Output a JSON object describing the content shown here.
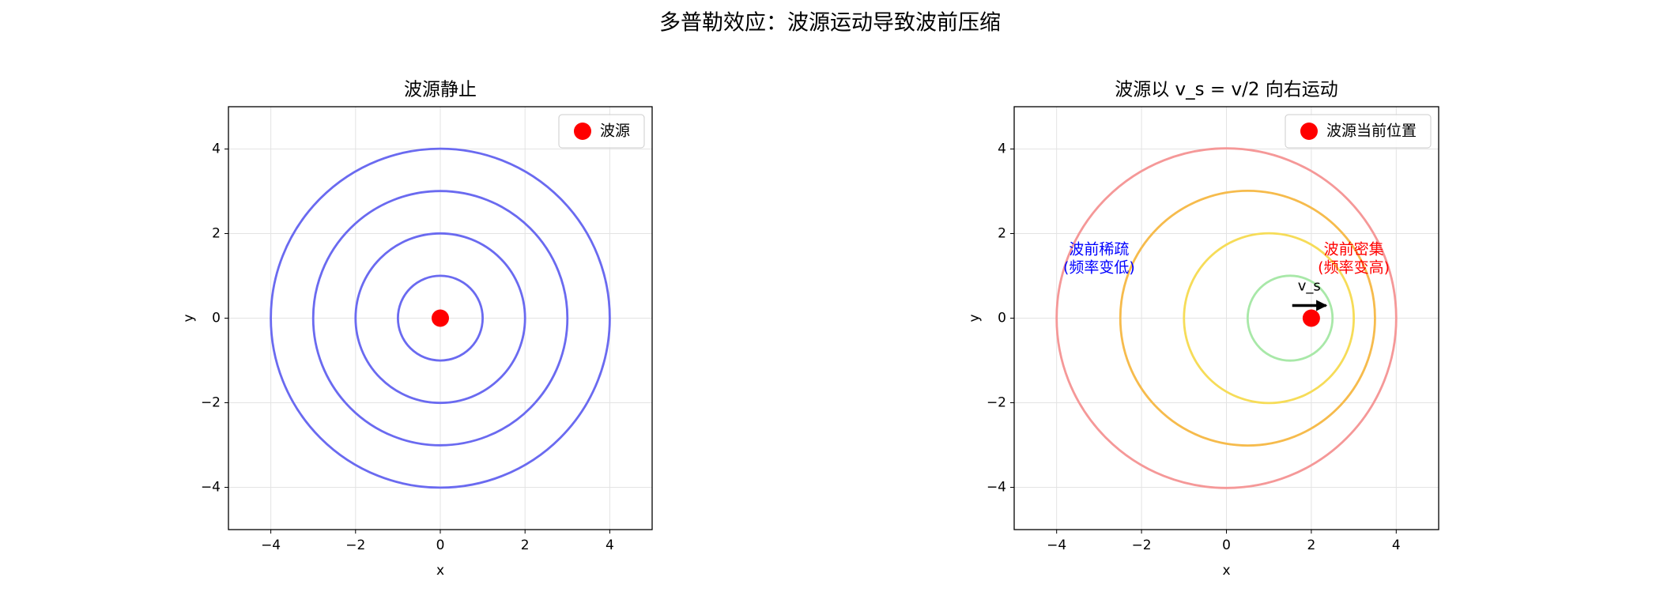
{
  "title": "多普勒效应：波源运动导致波前压缩",
  "chart_data": [
    {
      "type": "wavefront",
      "title": "波源静止",
      "xlabel": "x",
      "ylabel": "y",
      "xlim": [
        -5,
        5
      ],
      "ylim": [
        -5,
        5
      ],
      "xticks": [
        {
          "value": -4,
          "label": "−4"
        },
        {
          "value": -2,
          "label": "−2"
        },
        0,
        2,
        4
      ],
      "yticks": [
        {
          "value": -4,
          "label": "−4"
        },
        {
          "value": -2,
          "label": "−2"
        },
        0,
        2,
        4
      ],
      "grid": true,
      "legend": "upper right",
      "wavefronts": {
        "cx": [
          0,
          0,
          0,
          0
        ],
        "cy": [
          0,
          0,
          0,
          0
        ],
        "r": [
          1,
          2,
          3,
          4
        ],
        "color": [
          "#6a6af0",
          "#6a6af0",
          "#6a6af0",
          "#6a6af0"
        ]
      },
      "series": [
        {
          "name": "波源",
          "color": "#ff0000",
          "x": [
            0
          ],
          "y": [
            0
          ]
        }
      ]
    },
    {
      "type": "wavefront",
      "title": "波源以 v_s = v/2 向右运动",
      "xlabel": "x",
      "ylabel": "y",
      "xlim": [
        -5,
        5
      ],
      "ylim": [
        -5,
        5
      ],
      "xticks": [
        {
          "value": -4,
          "label": "−4"
        },
        {
          "value": -2,
          "label": "−2"
        },
        0,
        2,
        4
      ],
      "yticks": [
        {
          "value": -4,
          "label": "−4"
        },
        {
          "value": -2,
          "label": "−2"
        },
        0,
        2,
        4
      ],
      "grid": true,
      "legend": "upper right",
      "wavefronts": {
        "cx": [
          0,
          0.5,
          1,
          1.5
        ],
        "cy": [
          0,
          0,
          0,
          0
        ],
        "r": [
          4,
          3,
          2,
          1
        ],
        "color": [
          "#f59898",
          "#f6bb4c",
          "#f6dc58",
          "#a8e8a8"
        ]
      },
      "series": [
        {
          "name": "波源当前位置",
          "color": "#ff0000",
          "x": [
            2
          ],
          "y": [
            0
          ]
        }
      ],
      "arrow": {
        "label": "v_s",
        "x": 1.55,
        "y": 0.3,
        "dx": 0.8
      },
      "annotations": [
        {
          "lines": [
            "波前稀疏",
            "(频率变低)"
          ],
          "x": -3,
          "y": 1.4,
          "color": "#0000ff"
        },
        {
          "lines": [
            "波前密集",
            "(频率变高)"
          ],
          "x": 3,
          "y": 1.4,
          "color": "#ff0000"
        }
      ]
    }
  ]
}
